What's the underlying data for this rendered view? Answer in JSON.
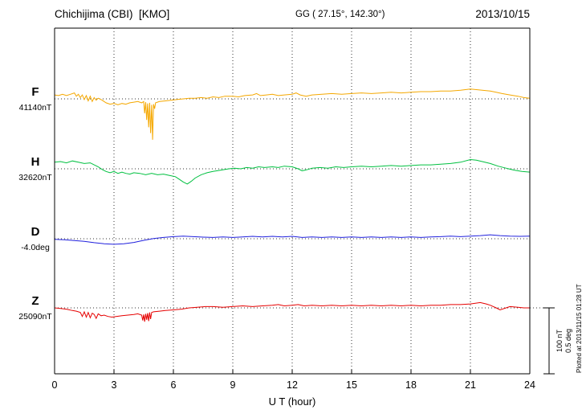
{
  "header": {
    "station": "Chichijima (CBI)  [KMO]",
    "gg": "GG ( 27.15°, 142.30°)",
    "date": "2013/10/15"
  },
  "axis": {
    "xlabel": "U T (hour)"
  },
  "scalebar": {
    "line1": "100 nT",
    "line2": "0.5 deg"
  },
  "plotted_at": "Plotted at 2013/11/15 01:28 UT",
  "chart_data": {
    "type": "line",
    "title": "Chichijima (CBI) [KMO] magnetogram 2013/10/15",
    "xlabel": "U T (hour)",
    "xlim": [
      0,
      24
    ],
    "x_ticks": [
      0,
      3,
      6,
      9,
      12,
      15,
      18,
      21,
      24
    ],
    "grid": "dotted vertical lines every 3 hours; dotted horizontal baseline per channel",
    "legend_position": "left channel labels",
    "scale": {
      "nT_per_div": 100,
      "deg_per_div": 0.5
    },
    "series": [
      {
        "name": "F",
        "unit": "nT",
        "baseline": 41140,
        "baseline_label": "41140nT",
        "color": "#f5a800",
        "points": [
          [
            0,
            41146
          ],
          [
            0.2,
            41145
          ],
          [
            0.4,
            41147
          ],
          [
            0.6,
            41145
          ],
          [
            0.8,
            41147
          ],
          [
            1.0,
            41149
          ],
          [
            1.1,
            41144
          ],
          [
            1.2,
            41147
          ],
          [
            1.3,
            41142
          ],
          [
            1.4,
            41146
          ],
          [
            1.5,
            41139
          ],
          [
            1.6,
            41145
          ],
          [
            1.7,
            41137
          ],
          [
            1.8,
            41144
          ],
          [
            1.9,
            41136
          ],
          [
            2.0,
            41142
          ],
          [
            2.1,
            41138
          ],
          [
            2.2,
            41141
          ],
          [
            2.4,
            41138
          ],
          [
            2.6,
            41134
          ],
          [
            2.8,
            41132
          ],
          [
            3.0,
            41133
          ],
          [
            3.2,
            41131
          ],
          [
            3.4,
            41133
          ],
          [
            3.6,
            41132
          ],
          [
            3.8,
            41134
          ],
          [
            4.0,
            41135
          ],
          [
            4.2,
            41136
          ],
          [
            4.4,
            41134
          ],
          [
            4.5,
            41136
          ],
          [
            4.55,
            41118
          ],
          [
            4.6,
            41135
          ],
          [
            4.65,
            41108
          ],
          [
            4.7,
            41133
          ],
          [
            4.75,
            41097
          ],
          [
            4.8,
            41134
          ],
          [
            4.85,
            41088
          ],
          [
            4.9,
            41131
          ],
          [
            4.95,
            41078
          ],
          [
            5.0,
            41132
          ],
          [
            5.05,
            41125
          ],
          [
            5.1,
            41134
          ],
          [
            5.3,
            41136
          ],
          [
            5.6,
            41137
          ],
          [
            5.9,
            41138
          ],
          [
            6.2,
            41139
          ],
          [
            6.5,
            41140
          ],
          [
            6.8,
            41141
          ],
          [
            7.1,
            41141
          ],
          [
            7.4,
            41142
          ],
          [
            7.7,
            41141
          ],
          [
            8.0,
            41143
          ],
          [
            8.3,
            41142
          ],
          [
            8.6,
            41144
          ],
          [
            9.0,
            41144
          ],
          [
            9.3,
            41143
          ],
          [
            9.6,
            41145
          ],
          [
            10.0,
            41146
          ],
          [
            10.2,
            41148
          ],
          [
            10.4,
            41145
          ],
          [
            10.7,
            41146
          ],
          [
            11.0,
            41147
          ],
          [
            11.3,
            41145
          ],
          [
            11.6,
            41146
          ],
          [
            12.0,
            41147
          ],
          [
            12.2,
            41149
          ],
          [
            12.4,
            41146
          ],
          [
            12.7,
            41144
          ],
          [
            13.0,
            41146
          ],
          [
            13.5,
            41147
          ],
          [
            14.0,
            41148
          ],
          [
            14.5,
            41147
          ],
          [
            15.0,
            41148
          ],
          [
            15.5,
            41149
          ],
          [
            16.0,
            41148
          ],
          [
            16.5,
            41149
          ],
          [
            17.0,
            41150
          ],
          [
            17.5,
            41149
          ],
          [
            18.0,
            41150
          ],
          [
            18.5,
            41151
          ],
          [
            19.0,
            41151
          ],
          [
            19.5,
            41152
          ],
          [
            20.0,
            41152
          ],
          [
            20.5,
            41153
          ],
          [
            21.0,
            41155
          ],
          [
            21.3,
            41154
          ],
          [
            21.6,
            41153
          ],
          [
            22.0,
            41152
          ],
          [
            22.3,
            41150
          ],
          [
            22.6,
            41148
          ],
          [
            23.0,
            41146
          ],
          [
            23.4,
            41144
          ],
          [
            23.7,
            41142
          ],
          [
            24.0,
            41141
          ]
        ]
      },
      {
        "name": "H",
        "unit": "nT",
        "baseline": 32620,
        "baseline_label": "32620nT",
        "color": "#00c040",
        "points": [
          [
            0,
            32630
          ],
          [
            0.3,
            32631
          ],
          [
            0.6,
            32629
          ],
          [
            0.9,
            32632
          ],
          [
            1.2,
            32630
          ],
          [
            1.5,
            32628
          ],
          [
            1.8,
            32629
          ],
          [
            2.0,
            32626
          ],
          [
            2.2,
            32623
          ],
          [
            2.4,
            32619
          ],
          [
            2.6,
            32616
          ],
          [
            2.8,
            32614
          ],
          [
            3.0,
            32616
          ],
          [
            3.2,
            32613
          ],
          [
            3.4,
            32615
          ],
          [
            3.6,
            32613
          ],
          [
            3.8,
            32612
          ],
          [
            4.0,
            32614
          ],
          [
            4.3,
            32613
          ],
          [
            4.6,
            32611
          ],
          [
            4.9,
            32613
          ],
          [
            5.2,
            32611
          ],
          [
            5.5,
            32612
          ],
          [
            5.8,
            32610
          ],
          [
            6.1,
            32608
          ],
          [
            6.3,
            32604
          ],
          [
            6.5,
            32600
          ],
          [
            6.7,
            32597
          ],
          [
            6.9,
            32601
          ],
          [
            7.1,
            32606
          ],
          [
            7.4,
            32611
          ],
          [
            7.7,
            32614
          ],
          [
            8.0,
            32616
          ],
          [
            8.4,
            32618
          ],
          [
            8.8,
            32620
          ],
          [
            9.1,
            32621
          ],
          [
            9.4,
            32620
          ],
          [
            9.7,
            32622
          ],
          [
            10.0,
            32621
          ],
          [
            10.3,
            32623
          ],
          [
            10.6,
            32622
          ],
          [
            11.0,
            32623
          ],
          [
            11.3,
            32622
          ],
          [
            11.6,
            32624
          ],
          [
            12.0,
            32623
          ],
          [
            12.3,
            32620
          ],
          [
            12.5,
            32617
          ],
          [
            12.8,
            32619
          ],
          [
            13.0,
            32621
          ],
          [
            13.4,
            32622
          ],
          [
            13.8,
            32621
          ],
          [
            14.2,
            32623
          ],
          [
            14.6,
            32622
          ],
          [
            15.0,
            32623
          ],
          [
            15.5,
            32624
          ],
          [
            16.0,
            32623
          ],
          [
            16.5,
            32624
          ],
          [
            17.0,
            32625
          ],
          [
            17.5,
            32624
          ],
          [
            18.0,
            32625
          ],
          [
            18.5,
            32626
          ],
          [
            19.0,
            32626
          ],
          [
            19.5,
            32627
          ],
          [
            20.0,
            32628
          ],
          [
            20.5,
            32630
          ],
          [
            21.0,
            32634
          ],
          [
            21.3,
            32633
          ],
          [
            21.6,
            32631
          ],
          [
            22.0,
            32628
          ],
          [
            22.4,
            32624
          ],
          [
            22.8,
            32621
          ],
          [
            23.2,
            32618
          ],
          [
            23.6,
            32616
          ],
          [
            24.0,
            32615
          ]
        ]
      },
      {
        "name": "D",
        "unit": "deg",
        "baseline": -4.0,
        "baseline_label": "-4.0deg",
        "color": "#2020dd",
        "points": [
          [
            0,
            -4.005
          ],
          [
            0.5,
            -4.008
          ],
          [
            1.0,
            -4.014
          ],
          [
            1.5,
            -4.02
          ],
          [
            2.0,
            -4.03
          ],
          [
            2.5,
            -4.038
          ],
          [
            3.0,
            -4.042
          ],
          [
            3.5,
            -4.038
          ],
          [
            4.0,
            -4.028
          ],
          [
            4.5,
            -4.012
          ],
          [
            5.0,
            -3.998
          ],
          [
            5.5,
            -3.99
          ],
          [
            6.0,
            -3.984
          ],
          [
            6.5,
            -3.98
          ],
          [
            7.0,
            -3.984
          ],
          [
            7.5,
            -3.988
          ],
          [
            8.0,
            -3.99
          ],
          [
            8.5,
            -3.986
          ],
          [
            9.0,
            -3.99
          ],
          [
            9.5,
            -3.986
          ],
          [
            10.0,
            -3.982
          ],
          [
            10.5,
            -3.986
          ],
          [
            11.0,
            -3.982
          ],
          [
            11.5,
            -3.986
          ],
          [
            12.0,
            -3.982
          ],
          [
            12.5,
            -3.99
          ],
          [
            13.0,
            -3.986
          ],
          [
            13.5,
            -3.99
          ],
          [
            14.0,
            -3.986
          ],
          [
            14.5,
            -3.99
          ],
          [
            15.0,
            -3.986
          ],
          [
            15.5,
            -3.99
          ],
          [
            16.0,
            -3.986
          ],
          [
            16.5,
            -3.99
          ],
          [
            17.0,
            -3.986
          ],
          [
            17.5,
            -3.99
          ],
          [
            18.0,
            -3.986
          ],
          [
            18.5,
            -3.99
          ],
          [
            19.0,
            -3.986
          ],
          [
            19.5,
            -3.984
          ],
          [
            20.0,
            -3.98
          ],
          [
            20.5,
            -3.984
          ],
          [
            21.0,
            -3.98
          ],
          [
            21.5,
            -3.976
          ],
          [
            22.0,
            -3.97
          ],
          [
            22.5,
            -3.976
          ],
          [
            23.0,
            -3.98
          ],
          [
            23.5,
            -3.982
          ],
          [
            24.0,
            -3.98
          ]
        ]
      },
      {
        "name": "Z",
        "unit": "nT",
        "baseline": 25090,
        "baseline_label": "25090nT",
        "color": "#e60000",
        "points": [
          [
            0,
            25090
          ],
          [
            0.3,
            25089
          ],
          [
            0.6,
            25088
          ],
          [
            0.9,
            25086
          ],
          [
            1.1,
            25085
          ],
          [
            1.3,
            25083
          ],
          [
            1.4,
            25077
          ],
          [
            1.5,
            25084
          ],
          [
            1.6,
            25076
          ],
          [
            1.7,
            25083
          ],
          [
            1.8,
            25075
          ],
          [
            1.9,
            25082
          ],
          [
            2.0,
            25080
          ],
          [
            2.1,
            25074
          ],
          [
            2.2,
            25081
          ],
          [
            2.35,
            25078
          ],
          [
            2.5,
            25079
          ],
          [
            2.7,
            25077
          ],
          [
            2.9,
            25076
          ],
          [
            3.1,
            25077
          ],
          [
            3.4,
            25078
          ],
          [
            3.7,
            25079
          ],
          [
            4.0,
            25080
          ],
          [
            4.2,
            25081
          ],
          [
            4.4,
            25079
          ],
          [
            4.45,
            25071
          ],
          [
            4.5,
            25080
          ],
          [
            4.55,
            25069
          ],
          [
            4.6,
            25081
          ],
          [
            4.65,
            25072
          ],
          [
            4.7,
            25082
          ],
          [
            4.75,
            25070
          ],
          [
            4.8,
            25083
          ],
          [
            4.85,
            25073
          ],
          [
            4.9,
            25083
          ],
          [
            5.0,
            25084
          ],
          [
            5.3,
            25085
          ],
          [
            5.6,
            25086
          ],
          [
            6.0,
            25087
          ],
          [
            6.4,
            25088
          ],
          [
            6.8,
            25090
          ],
          [
            7.2,
            25091
          ],
          [
            7.6,
            25092
          ],
          [
            8.0,
            25092
          ],
          [
            8.5,
            25091
          ],
          [
            9.0,
            25092
          ],
          [
            9.5,
            25093
          ],
          [
            10.0,
            25092
          ],
          [
            10.5,
            25093
          ],
          [
            11.0,
            25094
          ],
          [
            11.3,
            25095
          ],
          [
            11.6,
            25093
          ],
          [
            12.0,
            25094
          ],
          [
            12.3,
            25095
          ],
          [
            12.6,
            25093
          ],
          [
            13.0,
            25094
          ],
          [
            13.5,
            25093
          ],
          [
            14.0,
            25094
          ],
          [
            14.5,
            25093
          ],
          [
            15.0,
            25094
          ],
          [
            15.5,
            25093
          ],
          [
            16.0,
            25094
          ],
          [
            16.5,
            25093
          ],
          [
            17.0,
            25094
          ],
          [
            17.5,
            25093
          ],
          [
            18.0,
            25094
          ],
          [
            18.5,
            25093
          ],
          [
            19.0,
            25094
          ],
          [
            19.5,
            25094
          ],
          [
            20.0,
            25095
          ],
          [
            20.5,
            25095
          ],
          [
            21.0,
            25096
          ],
          [
            21.5,
            25098
          ],
          [
            21.8,
            25096
          ],
          [
            22.0,
            25094
          ],
          [
            22.3,
            25090
          ],
          [
            22.5,
            25087
          ],
          [
            22.8,
            25090
          ],
          [
            23.0,
            25092
          ],
          [
            23.4,
            25091
          ],
          [
            23.7,
            25090
          ],
          [
            24.0,
            25090
          ]
        ]
      }
    ]
  }
}
